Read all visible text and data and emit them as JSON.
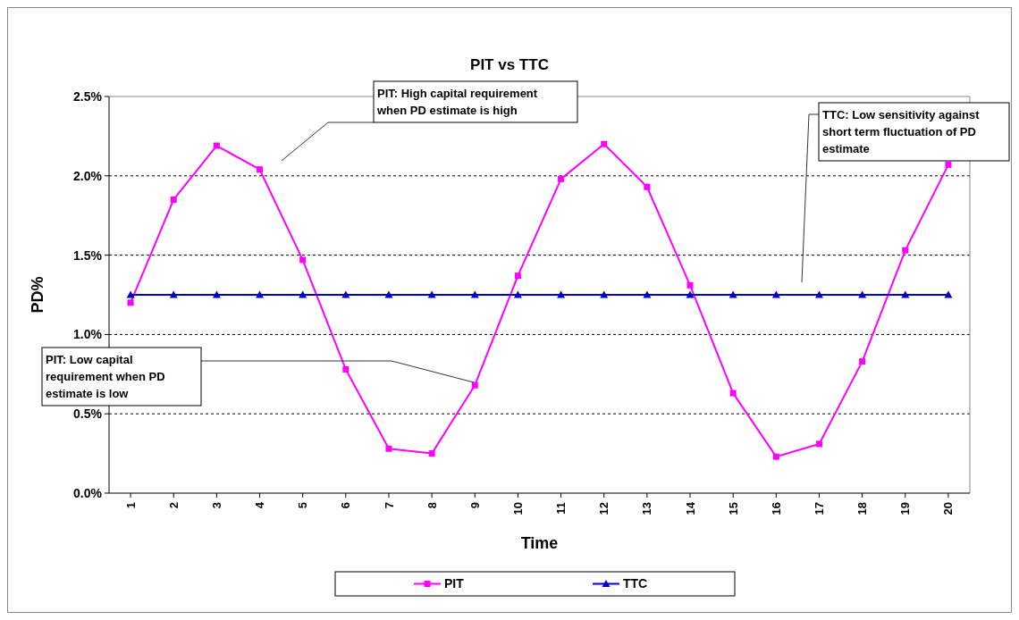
{
  "chart_data": {
    "type": "line",
    "title": "PIT vs TTC",
    "xlabel": "Time",
    "ylabel": "PD%",
    "x": [
      1,
      2,
      3,
      4,
      5,
      6,
      7,
      8,
      9,
      10,
      11,
      12,
      13,
      14,
      15,
      16,
      17,
      18,
      19,
      20
    ],
    "xlim": [
      0.5,
      20.5
    ],
    "xticks": [
      1,
      2,
      3,
      4,
      5,
      6,
      7,
      8,
      9,
      10,
      11,
      12,
      13,
      14,
      15,
      16,
      17,
      18,
      19,
      20
    ],
    "ylim": [
      0,
      2.5
    ],
    "yticks": [
      {
        "value": 0,
        "label": "0.0%"
      },
      {
        "value": 0.5,
        "label": "0.5%"
      },
      {
        "value": 1,
        "label": "1.0%"
      },
      {
        "value": 1.5,
        "label": "1.5%"
      },
      {
        "value": 2,
        "label": "2.0%"
      },
      {
        "value": 2.5,
        "label": "2.5%"
      }
    ],
    "grid": "y",
    "legend": "bottom",
    "series": [
      {
        "name": "PIT",
        "color": "#ff00ff",
        "marker": "square",
        "values": [
          1.2,
          1.85,
          2.19,
          2.04,
          1.47,
          0.78,
          0.28,
          0.25,
          0.68,
          1.37,
          1.98,
          2.2,
          1.93,
          1.31,
          0.63,
          0.23,
          0.31,
          0.83,
          1.53,
          2.07
        ]
      },
      {
        "name": "TTC",
        "color": "#0000cc",
        "marker": "triangle",
        "values": [
          1.25,
          1.25,
          1.25,
          1.25,
          1.25,
          1.25,
          1.25,
          1.25,
          1.25,
          1.25,
          1.25,
          1.25,
          1.25,
          1.25,
          1.25,
          1.25,
          1.25,
          1.25,
          1.25,
          1.25
        ]
      }
    ],
    "annotations": [
      "PIT: High capital requirement when PD estimate is high",
      "PIT: Low capital requirement when PD estimate is low",
      "TTC: Low sensitivity against short term fluctuation of PD estimate"
    ]
  }
}
